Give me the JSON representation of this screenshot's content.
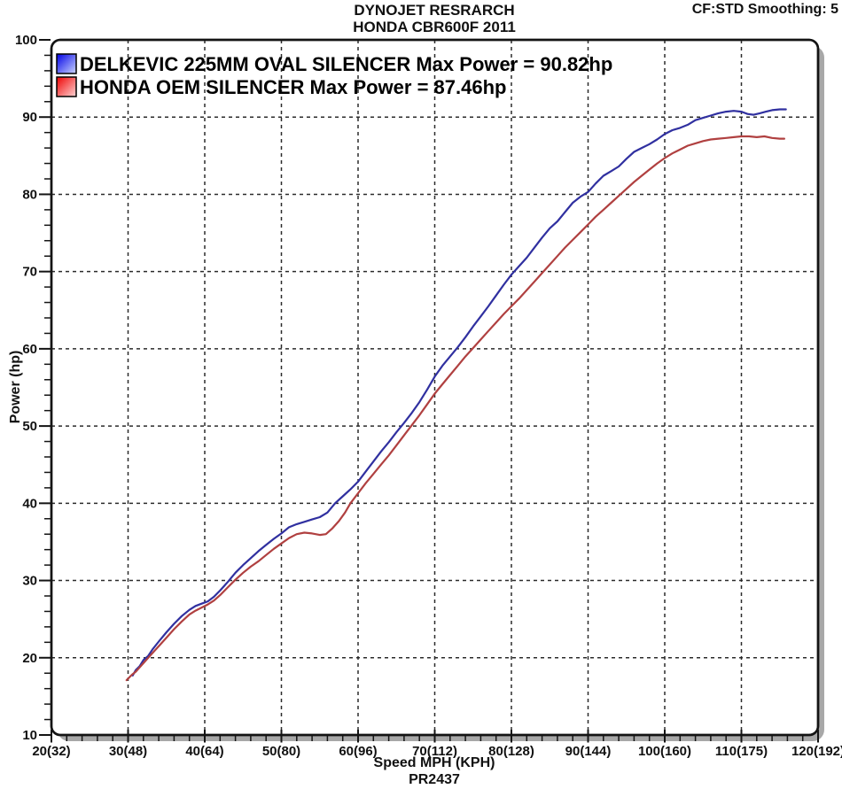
{
  "header": {
    "title_line1": "DYNOJET RESRARCH",
    "title_line2": "HONDA CBR600F 2011",
    "annotation_top_right": "CF:STD Smoothing: 5"
  },
  "chart_data": {
    "type": "line",
    "title": "DYNOJET RESRARCH",
    "subtitle": "HONDA CBR600F 2011",
    "annotation_top_right": "CF:STD Smoothing: 5",
    "xlabel": "Speed MPH (KPH)",
    "ylabel": "Power (hp)",
    "footer": "PR2437",
    "grid": "dashed major gridlines on",
    "legend_position": "top-left inside plot",
    "xlim": [
      20,
      120
    ],
    "ylim": [
      10,
      100
    ],
    "x_minor_step": 2,
    "y_minor_step": 2,
    "x_ticks": [
      {
        "v": 20,
        "label": "20(32)"
      },
      {
        "v": 30,
        "label": "30(48)"
      },
      {
        "v": 40,
        "label": "40(64)"
      },
      {
        "v": 50,
        "label": "50(80)"
      },
      {
        "v": 60,
        "label": "60(96)"
      },
      {
        "v": 70,
        "label": "70(112)"
      },
      {
        "v": 80,
        "label": "80(128)"
      },
      {
        "v": 90,
        "label": "90(144)"
      },
      {
        "v": 100,
        "label": "100(160)"
      },
      {
        "v": 110,
        "label": "110(175)"
      },
      {
        "v": 120,
        "label": "120(192)"
      }
    ],
    "y_ticks": [
      {
        "v": 10,
        "label": "10"
      },
      {
        "v": 20,
        "label": "20"
      },
      {
        "v": 30,
        "label": "30"
      },
      {
        "v": 40,
        "label": "40"
      },
      {
        "v": 50,
        "label": "50"
      },
      {
        "v": 60,
        "label": "60"
      },
      {
        "v": 70,
        "label": "70"
      },
      {
        "v": 80,
        "label": "80"
      },
      {
        "v": 90,
        "label": "90"
      },
      {
        "v": 100,
        "label": "100"
      }
    ],
    "colors": {
      "grid": "#2b2b2b",
      "frame": "#141414",
      "frame_shadow": "#a8a8a8",
      "background": "#ffffff"
    },
    "series": [
      {
        "name": "DELKEVIC 225MM OVAL SILENCER",
        "legend_label": "DELKEVIC 225MM OVAL SILENCER Max Power = 90.82hp",
        "max_power_hp": 90.82,
        "color": "#3030a0",
        "swatch_gradient": [
          "#0000e6",
          "#ccd6ff"
        ],
        "points_mph_hp": [
          [
            30.6,
            17.7
          ],
          [
            31,
            18.4
          ],
          [
            31.5,
            18.9
          ],
          [
            32,
            19.7
          ],
          [
            32.6,
            20.2
          ],
          [
            33.2,
            21.1
          ],
          [
            34,
            22.1
          ],
          [
            35,
            23.3
          ],
          [
            36,
            24.4
          ],
          [
            37,
            25.4
          ],
          [
            38,
            26.2
          ],
          [
            38.8,
            26.7
          ],
          [
            39.6,
            27.0
          ],
          [
            40.4,
            27.3
          ],
          [
            41.2,
            27.9
          ],
          [
            42,
            28.7
          ],
          [
            43,
            29.8
          ],
          [
            44,
            31.0
          ],
          [
            45,
            32.0
          ],
          [
            46,
            32.9
          ],
          [
            47,
            33.8
          ],
          [
            48,
            34.6
          ],
          [
            49,
            35.4
          ],
          [
            50,
            36.1
          ],
          [
            51,
            36.9
          ],
          [
            52,
            37.3
          ],
          [
            53,
            37.6
          ],
          [
            54,
            37.9
          ],
          [
            55,
            38.2
          ],
          [
            56,
            38.8
          ],
          [
            57,
            40.0
          ],
          [
            58,
            40.9
          ],
          [
            59,
            41.8
          ],
          [
            60,
            42.8
          ],
          [
            61,
            44.1
          ],
          [
            62,
            45.4
          ],
          [
            63,
            46.7
          ],
          [
            64,
            47.9
          ],
          [
            65,
            49.2
          ],
          [
            66,
            50.4
          ],
          [
            67,
            51.7
          ],
          [
            68,
            53.1
          ],
          [
            69,
            54.7
          ],
          [
            70,
            56.4
          ],
          [
            71,
            57.8
          ],
          [
            72,
            59.0
          ],
          [
            73,
            60.2
          ],
          [
            74,
            61.5
          ],
          [
            75,
            62.9
          ],
          [
            76,
            64.2
          ],
          [
            77,
            65.5
          ],
          [
            78,
            66.9
          ],
          [
            79,
            68.3
          ],
          [
            80,
            69.6
          ],
          [
            81,
            70.7
          ],
          [
            82,
            71.8
          ],
          [
            83,
            73.1
          ],
          [
            84,
            74.4
          ],
          [
            85,
            75.6
          ],
          [
            86,
            76.5
          ],
          [
            87,
            77.7
          ],
          [
            88,
            78.9
          ],
          [
            89,
            79.7
          ],
          [
            90,
            80.3
          ],
          [
            91,
            81.4
          ],
          [
            92,
            82.4
          ],
          [
            93,
            83.0
          ],
          [
            94,
            83.6
          ],
          [
            95,
            84.6
          ],
          [
            96,
            85.5
          ],
          [
            97,
            86.0
          ],
          [
            98,
            86.5
          ],
          [
            99,
            87.1
          ],
          [
            100,
            87.8
          ],
          [
            101,
            88.3
          ],
          [
            102,
            88.6
          ],
          [
            103,
            89.0
          ],
          [
            104,
            89.6
          ],
          [
            105,
            89.9
          ],
          [
            106,
            90.2
          ],
          [
            107,
            90.5
          ],
          [
            108,
            90.7
          ],
          [
            109,
            90.8
          ],
          [
            110,
            90.7
          ],
          [
            110.8,
            90.4
          ],
          [
            111.6,
            90.3
          ],
          [
            112.4,
            90.5
          ],
          [
            113.2,
            90.7
          ],
          [
            114,
            90.9
          ],
          [
            115,
            91.0
          ],
          [
            115.8,
            91.0
          ]
        ]
      },
      {
        "name": "HONDA OEM SILENCER",
        "legend_label": "HONDA OEM SILENCER Max Power = 87.46hp",
        "max_power_hp": 87.46,
        "color": "#b04040",
        "swatch_gradient": [
          "#ee0000",
          "#ffd6d6"
        ],
        "points_mph_hp": [
          [
            29.8,
            17.1
          ],
          [
            30.5,
            17.8
          ],
          [
            31,
            18.2
          ],
          [
            32,
            19.3
          ],
          [
            33,
            20.4
          ],
          [
            34,
            21.5
          ],
          [
            35,
            22.6
          ],
          [
            36,
            23.7
          ],
          [
            37,
            24.7
          ],
          [
            38,
            25.6
          ],
          [
            38.8,
            26.1
          ],
          [
            39.6,
            26.5
          ],
          [
            40.4,
            26.9
          ],
          [
            41.2,
            27.4
          ],
          [
            42,
            28.1
          ],
          [
            43,
            29.1
          ],
          [
            44,
            30.1
          ],
          [
            45,
            31.0
          ],
          [
            46,
            31.8
          ],
          [
            47,
            32.5
          ],
          [
            48,
            33.3
          ],
          [
            49,
            34.1
          ],
          [
            50,
            34.8
          ],
          [
            51,
            35.5
          ],
          [
            52,
            36.0
          ],
          [
            53,
            36.2
          ],
          [
            54,
            36.1
          ],
          [
            55,
            35.9
          ],
          [
            55.8,
            36.0
          ],
          [
            56.6,
            36.7
          ],
          [
            57.5,
            37.7
          ],
          [
            58.3,
            38.8
          ],
          [
            59,
            40.0
          ],
          [
            60,
            41.3
          ],
          [
            61,
            42.6
          ],
          [
            62,
            43.8
          ],
          [
            63,
            45.0
          ],
          [
            64,
            46.2
          ],
          [
            65,
            47.5
          ],
          [
            66,
            48.8
          ],
          [
            67,
            50.1
          ],
          [
            68,
            51.4
          ],
          [
            69,
            52.8
          ],
          [
            70,
            54.2
          ],
          [
            71,
            55.4
          ],
          [
            72,
            56.6
          ],
          [
            73,
            57.8
          ],
          [
            74,
            59.0
          ],
          [
            75,
            60.1
          ],
          [
            76,
            61.2
          ],
          [
            77,
            62.3
          ],
          [
            78,
            63.4
          ],
          [
            79,
            64.5
          ],
          [
            80,
            65.5
          ],
          [
            81,
            66.5
          ],
          [
            82,
            67.6
          ],
          [
            83,
            68.7
          ],
          [
            84,
            69.8
          ],
          [
            85,
            70.9
          ],
          [
            86,
            72.0
          ],
          [
            87,
            73.1
          ],
          [
            88,
            74.1
          ],
          [
            89,
            75.1
          ],
          [
            90,
            76.1
          ],
          [
            91,
            77.1
          ],
          [
            92,
            78.0
          ],
          [
            93,
            78.9
          ],
          [
            94,
            79.8
          ],
          [
            95,
            80.7
          ],
          [
            96,
            81.6
          ],
          [
            97,
            82.4
          ],
          [
            98,
            83.2
          ],
          [
            99,
            84.0
          ],
          [
            100,
            84.7
          ],
          [
            101,
            85.3
          ],
          [
            102,
            85.8
          ],
          [
            103,
            86.3
          ],
          [
            104,
            86.6
          ],
          [
            105,
            86.9
          ],
          [
            106,
            87.1
          ],
          [
            107,
            87.2
          ],
          [
            108,
            87.3
          ],
          [
            109,
            87.4
          ],
          [
            110,
            87.5
          ],
          [
            111,
            87.5
          ],
          [
            112,
            87.4
          ],
          [
            113,
            87.5
          ],
          [
            114,
            87.3
          ],
          [
            115,
            87.2
          ],
          [
            115.6,
            87.2
          ]
        ]
      }
    ]
  }
}
